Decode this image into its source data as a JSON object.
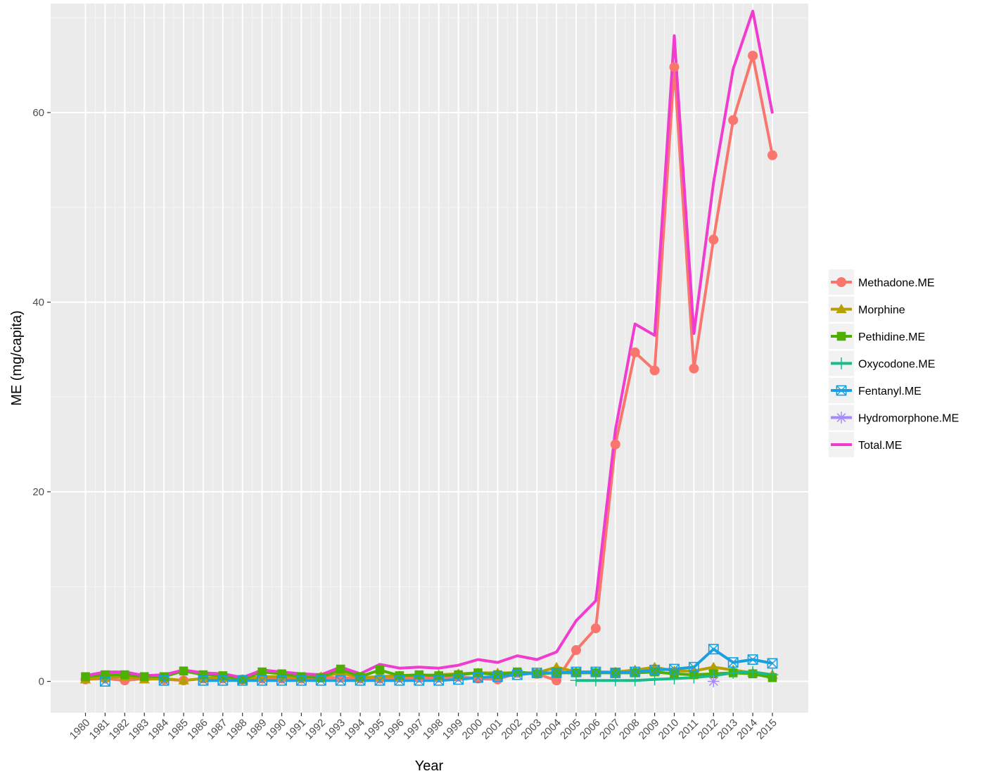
{
  "chart_data": {
    "type": "line",
    "xlabel": "Year",
    "ylabel": "ME (mg/capita)",
    "ylim": [
      -3.3,
      71.5
    ],
    "yticks": [
      0,
      20,
      40,
      60
    ],
    "grid": true,
    "legend_position": "right",
    "categories": [
      "1980",
      "1981",
      "1982",
      "1983",
      "1984",
      "1985",
      "1986",
      "1987",
      "1988",
      "1989",
      "1990",
      "1991",
      "1992",
      "1993",
      "1994",
      "1995",
      "1996",
      "1997",
      "1998",
      "1999",
      "2000",
      "2001",
      "2002",
      "2003",
      "2004",
      "2005",
      "2006",
      "2007",
      "2008",
      "2009",
      "2010",
      "2011",
      "2012",
      "2013",
      "2014",
      "2015"
    ],
    "series": [
      {
        "name": "Methadone.ME",
        "color": "#F8766D",
        "marker": "circle",
        "values": [
          0.2,
          0.3,
          0.1,
          0.3,
          0.2,
          0.1,
          0.3,
          0.3,
          0.2,
          0.3,
          0.3,
          0.3,
          0.4,
          0.4,
          0.3,
          0.3,
          0.4,
          0.4,
          0.4,
          0.5,
          0.3,
          0.2,
          0.9,
          0.8,
          0.1,
          3.3,
          5.6,
          25.0,
          34.7,
          32.8,
          64.8,
          33.0,
          46.6,
          59.2,
          66.0,
          55.5
        ]
      },
      {
        "name": "Morphine",
        "color": "#B79F00",
        "marker": "triangle",
        "values": [
          0.2,
          0.4,
          0.5,
          0.2,
          0.3,
          0.1,
          0.3,
          0.4,
          0.2,
          0.5,
          0.5,
          0.4,
          0.5,
          0.9,
          0.4,
          0.5,
          0.6,
          0.6,
          0.7,
          0.8,
          0.9,
          0.9,
          0.9,
          0.9,
          1.5,
          1.0,
          1.0,
          1.0,
          1.2,
          1.5,
          1.1,
          1.1,
          1.5,
          1.2,
          0.9,
          0.7
        ]
      },
      {
        "name": "Pethidine.ME",
        "color": "#4DAF00",
        "marker": "square",
        "values": [
          0.5,
          0.7,
          0.7,
          0.5,
          0.5,
          1.1,
          0.7,
          0.6,
          0.2,
          1.0,
          0.8,
          0.5,
          0.4,
          1.3,
          0.5,
          1.2,
          0.6,
          0.7,
          0.6,
          0.7,
          0.9,
          0.7,
          1.0,
          0.8,
          0.9,
          0.9,
          0.9,
          0.9,
          0.9,
          1.0,
          0.8,
          0.7,
          0.8,
          0.9,
          0.8,
          0.4
        ]
      },
      {
        "name": "Oxycodone.ME",
        "color": "#1ABA8A",
        "marker": "plus",
        "values": [
          null,
          null,
          null,
          null,
          null,
          null,
          null,
          null,
          null,
          null,
          null,
          null,
          null,
          null,
          null,
          null,
          null,
          null,
          null,
          null,
          null,
          null,
          null,
          null,
          null,
          0.1,
          0.1,
          0.1,
          0.1,
          0.2,
          0.3,
          0.4,
          0.6,
          0.9,
          1.0,
          0.7
        ]
      },
      {
        "name": "Fentanyl.ME",
        "color": "#1AA0E0",
        "marker": "square-x",
        "values": [
          null,
          0.0,
          null,
          null,
          0.1,
          null,
          0.1,
          0.1,
          0.1,
          0.1,
          0.1,
          0.1,
          0.1,
          0.1,
          0.1,
          0.1,
          0.1,
          0.1,
          0.1,
          0.2,
          0.4,
          0.5,
          0.7,
          0.9,
          0.9,
          1.0,
          1.0,
          0.9,
          1.0,
          1.2,
          1.3,
          1.5,
          3.4,
          2.0,
          2.3,
          1.9
        ]
      },
      {
        "name": "Hydromorphone.ME",
        "color": "#A68BF7",
        "marker": "asterisk",
        "values": [
          null,
          null,
          null,
          null,
          null,
          null,
          null,
          null,
          null,
          null,
          null,
          null,
          null,
          null,
          null,
          null,
          null,
          null,
          null,
          null,
          null,
          null,
          null,
          null,
          null,
          null,
          null,
          null,
          null,
          null,
          null,
          null,
          0.0,
          null,
          null,
          null
        ]
      },
      {
        "name": "Total.ME",
        "color": "#F03CCF",
        "marker": "none",
        "values": [
          0.6,
          1.0,
          1.0,
          0.6,
          0.7,
          1.2,
          0.9,
          0.8,
          0.4,
          1.2,
          1.0,
          0.8,
          0.7,
          1.5,
          0.8,
          1.8,
          1.4,
          1.5,
          1.4,
          1.7,
          2.3,
          2.0,
          2.7,
          2.3,
          3.1,
          6.4,
          8.5,
          26.5,
          37.7,
          36.5,
          68.1,
          36.7,
          52.6,
          64.6,
          70.7,
          59.9
        ]
      }
    ]
  }
}
